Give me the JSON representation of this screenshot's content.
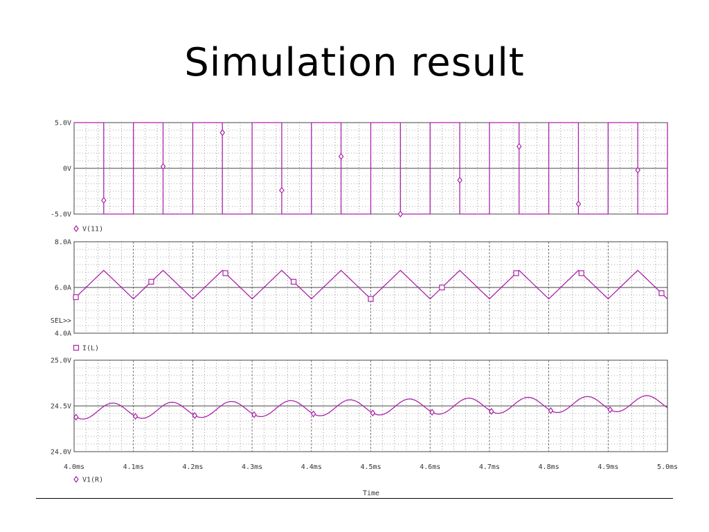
{
  "slide": {
    "title": "Simulation result"
  },
  "colors": {
    "trace": "#aa22aa",
    "grid": "#555555",
    "frame": "#444444"
  },
  "chart_data": [
    {
      "type": "line",
      "ylim": [
        -5,
        5
      ],
      "y_ticks": [
        {
          "value": 5,
          "label": "5.0V"
        },
        {
          "value": 0,
          "label": "0V"
        },
        {
          "value": -5,
          "label": "-5.0V"
        }
      ],
      "legend": {
        "marker": "diamond",
        "label": "V(11)"
      },
      "series": [
        {
          "kind": "square",
          "period_ms": 0.1,
          "high": 5,
          "low": -5,
          "high_from_ms": 4.0,
          "high_to_ms": 4.05
        }
      ]
    },
    {
      "type": "line",
      "ylim": [
        4,
        8
      ],
      "y_ticks": [
        {
          "value": 8,
          "label": "8.0A"
        },
        {
          "value": 6,
          "label": "6.0A"
        },
        {
          "value": 4,
          "label": "4.0A"
        }
      ],
      "sel_label": "SEL>>",
      "legend": {
        "marker": "square",
        "label": "I(L)"
      },
      "series": [
        {
          "kind": "triangle",
          "period_ms": 0.1,
          "min": 5.5,
          "max": 6.75,
          "min_at_ms": 4.0,
          "max_at_ms": 4.05
        }
      ]
    },
    {
      "type": "line",
      "ylim": [
        24,
        25
      ],
      "y_ticks": [
        {
          "value": 25,
          "label": "25.0V"
        },
        {
          "value": 24.5,
          "label": "24.5V"
        },
        {
          "value": 24,
          "label": "24.0V"
        }
      ],
      "legend": {
        "marker": "diamond",
        "label": "V1(R)"
      },
      "series": [
        {
          "kind": "ripple",
          "period_ms": 0.1,
          "mean_start": 24.44,
          "mean_end": 24.53,
          "amplitude": 0.085,
          "peak_at_ms": 4.065
        }
      ],
      "x_ticks": [
        "4.0ms",
        "4.1ms",
        "4.2ms",
        "4.3ms",
        "4.4ms",
        "4.5ms",
        "4.6ms",
        "4.7ms",
        "4.8ms",
        "4.9ms",
        "5.0ms"
      ],
      "xlabel": "Time",
      "xlim": [
        4.0,
        5.0
      ]
    }
  ]
}
